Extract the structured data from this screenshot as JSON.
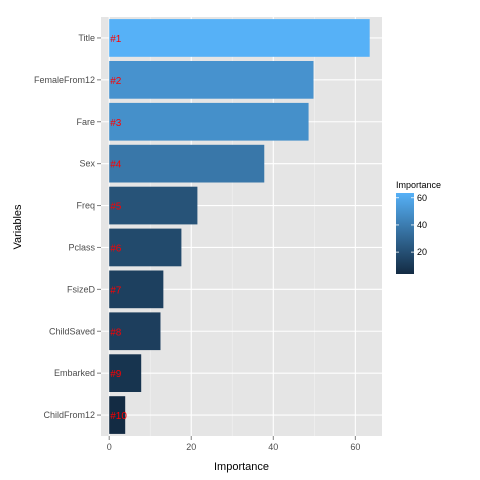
{
  "chart_data": {
    "type": "bar",
    "orientation": "horizontal",
    "xlabel": "Importance",
    "ylabel": "Variables",
    "xlim": [
      -2,
      66.5
    ],
    "x_ticks": [
      0,
      20,
      40,
      60
    ],
    "grid": true,
    "categories": [
      "Title",
      "FemaleFrom12",
      "Fare",
      "Sex",
      "Freq",
      "Pclass",
      "FsizeD",
      "ChildSaved",
      "Embarked",
      "ChildFrom12"
    ],
    "values": [
      63.5,
      49.8,
      48.6,
      37.8,
      21.5,
      17.6,
      13.2,
      12.5,
      7.8,
      3.9
    ],
    "rank_labels": [
      "#1",
      "#2",
      "#3",
      "#4",
      "#5",
      "#6",
      "#7",
      "#8",
      "#9",
      "#10"
    ],
    "legend": {
      "title": "Importance",
      "ticks": [
        20,
        40,
        60
      ],
      "min": 3.9,
      "max": 63.5,
      "low_color": "#132b43",
      "high_color": "#56b1f7",
      "placement": "right"
    },
    "colors": {
      "panel_background": "#e5e5e5",
      "grid_major": "#ffffff",
      "rank_label": "#ff0000"
    }
  }
}
